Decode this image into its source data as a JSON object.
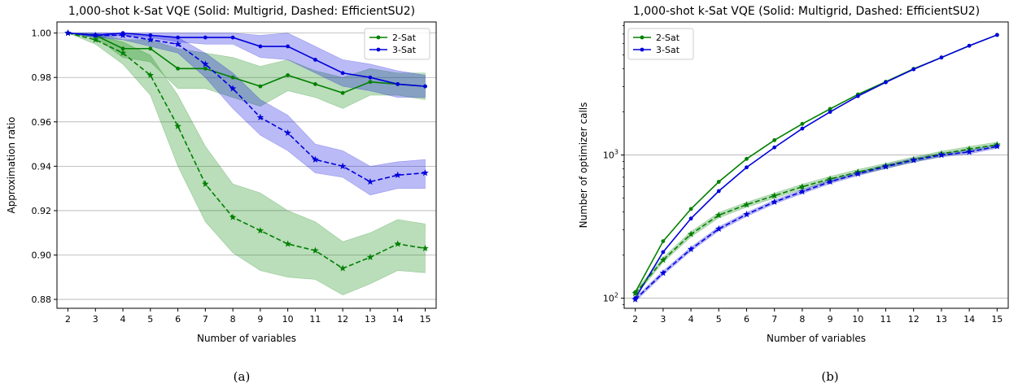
{
  "colors": {
    "series1": "#008000",
    "series2": "#0000dd",
    "grid": "#b0b0b0"
  },
  "chart_data": [
    {
      "type": "line",
      "title": "1,000-shot k-Sat VQE (Solid: Multigrid, Dashed: EfficientSU2)",
      "xlabel": "Number of variables",
      "ylabel": "Approximation ratio",
      "caption": "(a)",
      "x": [
        2,
        3,
        4,
        5,
        6,
        7,
        8,
        9,
        10,
        11,
        12,
        13,
        14,
        15
      ],
      "xlim": [
        1.6,
        15.4
      ],
      "ylim": [
        0.876,
        1.005
      ],
      "y_scale": "linear",
      "yticks": [
        0.88,
        0.9,
        0.92,
        0.94,
        0.96,
        0.98,
        1.0
      ],
      "ytick_labels": [
        "0.88",
        "0.90",
        "0.92",
        "0.94",
        "0.96",
        "0.98",
        "1.00"
      ],
      "grid": "y",
      "legend": {
        "position": "top-right",
        "entries": [
          "2-Sat",
          "3-Sat"
        ]
      },
      "series": [
        {
          "name": "2-Sat",
          "style": "solid",
          "marker": "dot",
          "color": "#008000",
          "values": [
            1.0,
            0.999,
            0.993,
            0.993,
            0.984,
            0.984,
            0.98,
            0.976,
            0.981,
            0.977,
            0.973,
            0.978,
            0.977,
            0.976
          ],
          "lower": [
            1.0,
            0.998,
            0.989,
            0.987,
            0.975,
            0.975,
            0.971,
            0.967,
            0.974,
            0.971,
            0.966,
            0.972,
            0.972,
            0.97
          ],
          "upper": [
            1.0,
            1.0,
            0.997,
            0.997,
            0.993,
            0.991,
            0.989,
            0.985,
            0.988,
            0.983,
            0.98,
            0.984,
            0.982,
            0.982
          ]
        },
        {
          "name": "3-Sat",
          "style": "solid",
          "marker": "dot",
          "color": "#0000dd",
          "values": [
            1.0,
            0.999,
            1.0,
            0.999,
            0.998,
            0.998,
            0.998,
            0.994,
            0.994,
            0.988,
            0.982,
            0.98,
            0.977,
            0.976
          ],
          "lower": [
            1.0,
            0.998,
            0.999,
            0.998,
            0.996,
            0.995,
            0.995,
            0.989,
            0.988,
            0.982,
            0.976,
            0.974,
            0.971,
            0.971
          ],
          "upper": [
            1.0,
            1.0,
            1.0,
            1.0,
            1.0,
            1.0,
            1.0,
            0.999,
            1.0,
            0.994,
            0.988,
            0.986,
            0.983,
            0.981
          ]
        },
        {
          "name": "",
          "style": "dashed",
          "marker": "star",
          "color": "#008000",
          "values": [
            1.0,
            0.997,
            0.991,
            0.981,
            0.958,
            0.932,
            0.917,
            0.911,
            0.905,
            0.902,
            0.894,
            0.899,
            0.905,
            0.903
          ],
          "lower": [
            1.0,
            0.995,
            0.986,
            0.972,
            0.94,
            0.915,
            0.901,
            0.893,
            0.89,
            0.889,
            0.882,
            0.887,
            0.893,
            0.892
          ],
          "upper": [
            1.0,
            0.999,
            0.996,
            0.99,
            0.972,
            0.949,
            0.932,
            0.928,
            0.92,
            0.915,
            0.906,
            0.91,
            0.916,
            0.914
          ]
        },
        {
          "name": "",
          "style": "dashed",
          "marker": "star",
          "color": "#0000dd",
          "values": [
            1.0,
            0.999,
            0.999,
            0.997,
            0.995,
            0.986,
            0.975,
            0.962,
            0.955,
            0.943,
            0.94,
            0.933,
            0.936,
            0.937
          ],
          "lower": [
            1.0,
            0.998,
            0.997,
            0.994,
            0.991,
            0.98,
            0.966,
            0.954,
            0.947,
            0.937,
            0.935,
            0.927,
            0.93,
            0.93
          ],
          "upper": [
            1.0,
            1.0,
            1.0,
            0.999,
            0.998,
            0.991,
            0.982,
            0.97,
            0.963,
            0.95,
            0.947,
            0.94,
            0.942,
            0.943
          ]
        }
      ]
    },
    {
      "type": "line",
      "title": "1,000-shot k-Sat VQE (Solid: Multigrid, Dashed: EfficientSU2)",
      "xlabel": "Number of variables",
      "ylabel": "Number of optimizer calls",
      "caption": "(b)",
      "x": [
        2,
        3,
        4,
        5,
        6,
        7,
        8,
        9,
        10,
        11,
        12,
        13,
        14,
        15
      ],
      "xlim": [
        1.6,
        15.4
      ],
      "ylim": [
        85,
        8500
      ],
      "y_scale": "log",
      "yticks": [
        100,
        1000
      ],
      "ytick_labels": [
        [
          "10",
          "2"
        ],
        [
          "10",
          "3"
        ]
      ],
      "grid": "y",
      "legend": {
        "position": "top-left",
        "entries": [
          "2-Sat",
          "3-Sat"
        ]
      },
      "series": [
        {
          "name": "2-Sat",
          "style": "solid",
          "marker": "dot",
          "color": "#008000",
          "values": [
            110,
            250,
            420,
            650,
            940,
            1270,
            1650,
            2100,
            2650,
            3250,
            4000,
            4800,
            5800,
            6900
          ]
        },
        {
          "name": "3-Sat",
          "style": "solid",
          "marker": "dot",
          "color": "#0000dd",
          "values": [
            100,
            210,
            360,
            560,
            820,
            1130,
            1530,
            2000,
            2580,
            3220,
            3970,
            4800,
            5800,
            6900
          ]
        },
        {
          "name": "",
          "style": "dashed",
          "marker": "star",
          "color": "#008000",
          "values": [
            108,
            185,
            280,
            380,
            450,
            520,
            600,
            680,
            760,
            840,
            930,
            1020,
            1100,
            1180
          ],
          "lower": [
            104,
            178,
            268,
            364,
            432,
            498,
            575,
            651,
            728,
            805,
            892,
            978,
            1055,
            1130
          ],
          "upper": [
            112,
            192,
            292,
            396,
            468,
            542,
            625,
            709,
            792,
            875,
            968,
            1062,
            1146,
            1230
          ]
        },
        {
          "name": "",
          "style": "dashed",
          "marker": "star",
          "color": "#0000dd",
          "values": [
            98,
            150,
            220,
            305,
            385,
            470,
            555,
            650,
            740,
            830,
            920,
            1000,
            1050,
            1150
          ],
          "lower": [
            95,
            145,
            213,
            295,
            373,
            456,
            538,
            630,
            718,
            805,
            892,
            970,
            1018,
            1115
          ],
          "upper": [
            101,
            155,
            227,
            315,
            397,
            484,
            572,
            670,
            762,
            855,
            948,
            1030,
            1082,
            1185
          ]
        }
      ]
    }
  ]
}
